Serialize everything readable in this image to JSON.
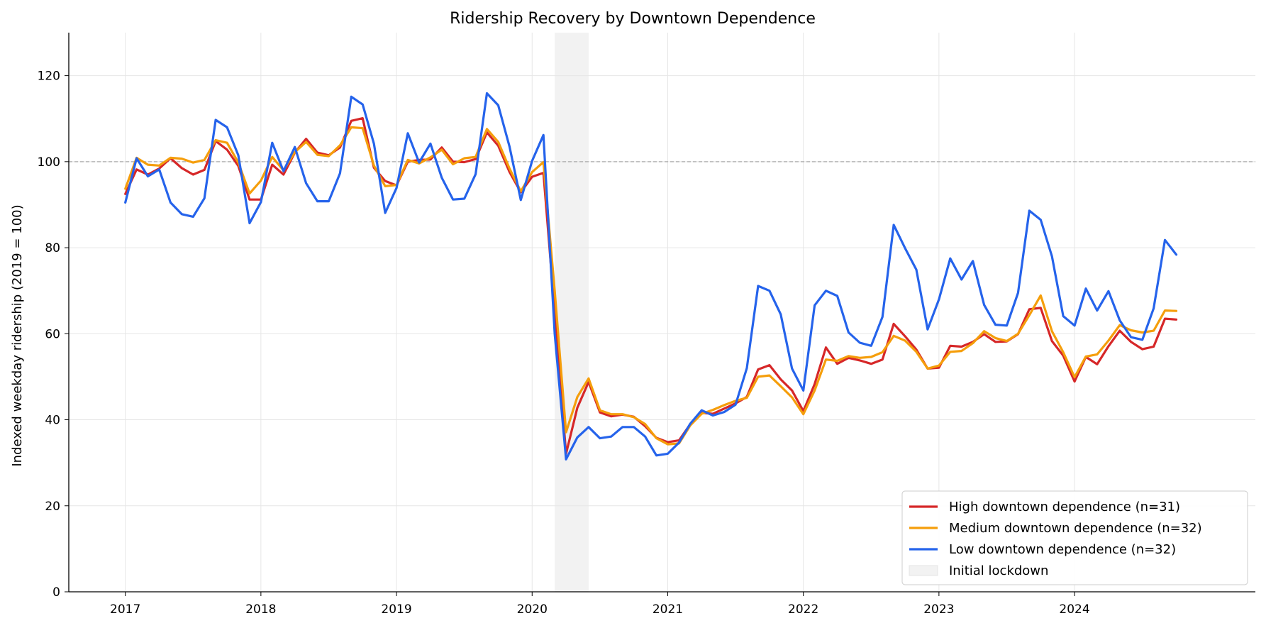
{
  "chart_data": {
    "type": "line",
    "title": "Ridership Recovery by Downtown Dependence",
    "xlabel": "",
    "ylabel": "Indexed weekday ridership (2019 = 100)",
    "x_start": "2017-01",
    "x_step": "1 month",
    "xlim": [
      "2016-08",
      "2025-05"
    ],
    "ylim": [
      0,
      130
    ],
    "x_ticks": [
      "2017",
      "2018",
      "2019",
      "2020",
      "2021",
      "2022",
      "2023",
      "2024"
    ],
    "y_ticks": [
      0,
      20,
      40,
      60,
      80,
      100,
      120
    ],
    "grid": true,
    "reference_line": {
      "y": 100,
      "style": "dashed",
      "color": "#aaaaaa"
    },
    "shaded_region": {
      "label": "Initial lockdown",
      "start": "2020-03",
      "end": "2020-06",
      "color": "#f2f2f2"
    },
    "legend_position": "bottom-right",
    "series": [
      {
        "name": "High downtown dependence (n=31)",
        "color": "#d62728",
        "values": [
          92.5,
          98.2,
          97,
          98.4,
          100.8,
          98.5,
          97,
          98.1,
          104.8,
          102.8,
          99,
          91.2,
          91.2,
          99.3,
          97,
          102.1,
          105.3,
          102.1,
          101.5,
          103.3,
          109.5,
          110.1,
          98.6,
          95.5,
          94.5,
          100,
          100.4,
          100.5,
          103.3,
          100,
          99.9,
          100.6,
          106.8,
          103.7,
          97.6,
          92.9,
          96.5,
          97.4,
          65,
          32.1,
          42.8,
          48.8,
          41.7,
          40.8,
          41.2,
          40.7,
          38.5,
          35.8,
          34.8,
          35.2,
          39,
          41.6,
          41.4,
          42.6,
          43.8,
          45.3,
          51.7,
          52.7,
          49.4,
          46.8,
          42,
          48.3,
          56.8,
          53,
          54.4,
          53.8,
          53,
          54,
          62.3,
          59.4,
          56.3,
          51.9,
          52.1,
          57.2,
          57,
          58.1,
          59.9,
          58.1,
          58.2,
          59.9,
          65.7,
          66,
          58.3,
          54.9,
          48.9,
          54.6,
          52.9,
          57.1,
          60.7,
          58.1,
          56.4,
          57,
          63.5,
          63.3
        ]
      },
      {
        "name": "Medium downtown dependence (n=32)",
        "color": "#f59e0b",
        "values": [
          93.7,
          100.9,
          99.3,
          99.1,
          100.9,
          100.7,
          99.8,
          100.4,
          105,
          104.4,
          99.8,
          92.6,
          95.6,
          101.1,
          98,
          102.2,
          104.6,
          101.6,
          101.3,
          103.8,
          108,
          107.8,
          99.1,
          94.3,
          94.6,
          100.4,
          99.6,
          101,
          102.8,
          99.4,
          100.8,
          101.1,
          107.6,
          104.6,
          98.4,
          93.1,
          97.6,
          99.9,
          70,
          37.1,
          45.3,
          49.6,
          42.2,
          41.3,
          41.3,
          40.6,
          39,
          35.7,
          34.3,
          34.5,
          38.7,
          41.4,
          42.3,
          43.4,
          44.4,
          45.1,
          50,
          50.3,
          47.8,
          45.2,
          41.3,
          46.8,
          54,
          53.7,
          54.8,
          54.4,
          54.6,
          55.7,
          59.5,
          58.4,
          55.8,
          51.9,
          52.6,
          55.8,
          56,
          57.8,
          60.6,
          59,
          58.3,
          60,
          64.3,
          68.9,
          60.6,
          55.7,
          49.9,
          54.7,
          55.2,
          58.4,
          62,
          60.8,
          60.3,
          60.7,
          65.4,
          65.3
        ]
      },
      {
        "name": "Low downtown dependence (n=32)",
        "color": "#2563eb",
        "values": [
          90.5,
          100.8,
          96.6,
          98.2,
          90.5,
          87.8,
          87.2,
          91.5,
          109.7,
          108,
          101.5,
          85.7,
          90.6,
          104.4,
          97.8,
          103.4,
          95,
          90.8,
          90.8,
          97.3,
          115.1,
          113.3,
          104.2,
          88.1,
          93.9,
          106.6,
          99.8,
          104.2,
          96.3,
          91.2,
          91.4,
          97.1,
          115.9,
          113.1,
          103.5,
          91.1,
          100.2,
          106.2,
          60,
          30.8,
          35.9,
          38.3,
          35.7,
          36.1,
          38.3,
          38.3,
          36.1,
          31.7,
          32.1,
          34.7,
          39.1,
          42.2,
          41,
          41.8,
          43.5,
          52,
          71.1,
          70,
          64.5,
          51.9,
          46.8,
          66.6,
          70,
          68.8,
          60.3,
          57.9,
          57.2,
          63.9,
          85.3,
          79.9,
          74.9,
          61,
          68,
          77.5,
          72.6,
          76.9,
          66.7,
          62.1,
          61.9,
          69.5,
          88.6,
          86.5,
          78,
          64.1,
          61.9,
          70.5,
          65.4,
          69.9,
          63.1,
          59.2,
          58.6,
          65.9,
          81.8,
          78.4
        ]
      }
    ]
  }
}
